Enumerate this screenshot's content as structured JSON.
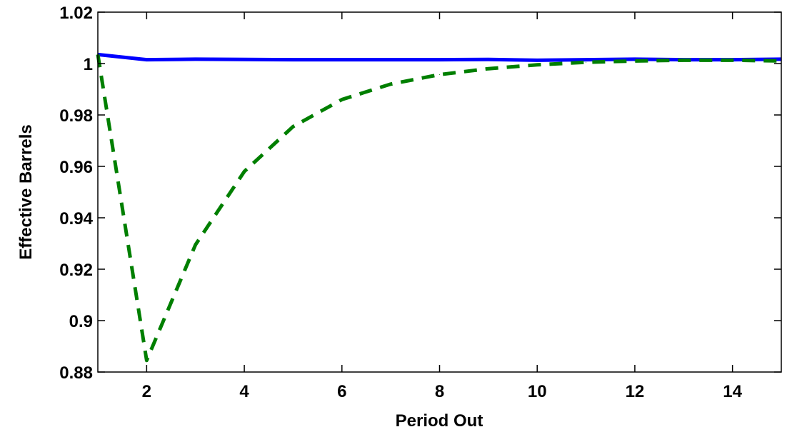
{
  "chart_data": {
    "type": "line",
    "title": "",
    "xlabel": "Period Out",
    "ylabel": "Effective Barrels",
    "xlim": [
      1,
      15
    ],
    "ylim": [
      0.88,
      1.02
    ],
    "xticks": [
      2,
      4,
      6,
      8,
      10,
      12,
      14
    ],
    "yticks": [
      0.88,
      0.9,
      0.92,
      0.94,
      0.96,
      0.98,
      1,
      1.02
    ],
    "ytick_labels": [
      "0.88",
      "0.9",
      "0.92",
      "0.94",
      "0.96",
      "0.98",
      "1",
      "1.02"
    ],
    "grid": false,
    "legend": "none",
    "x": [
      1,
      2,
      3,
      4,
      5,
      6,
      7,
      8,
      9,
      10,
      11,
      12,
      13,
      14,
      15
    ],
    "series": [
      {
        "style": "solid",
        "color": "#0000ff",
        "values": [
          1.0035,
          1.0015,
          1.0017,
          1.0016,
          1.0015,
          1.0015,
          1.0015,
          1.0015,
          1.0016,
          1.0013,
          1.0015,
          1.0017,
          1.0015,
          1.0015,
          1.0017
        ]
      },
      {
        "style": "dashed",
        "color": "#007f00",
        "values": [
          1.0035,
          0.8845,
          0.9295,
          0.958,
          0.9755,
          0.986,
          0.992,
          0.9957,
          0.998,
          0.9995,
          1.0005,
          1.001,
          1.0013,
          1.0013,
          1.001
        ]
      }
    ]
  }
}
